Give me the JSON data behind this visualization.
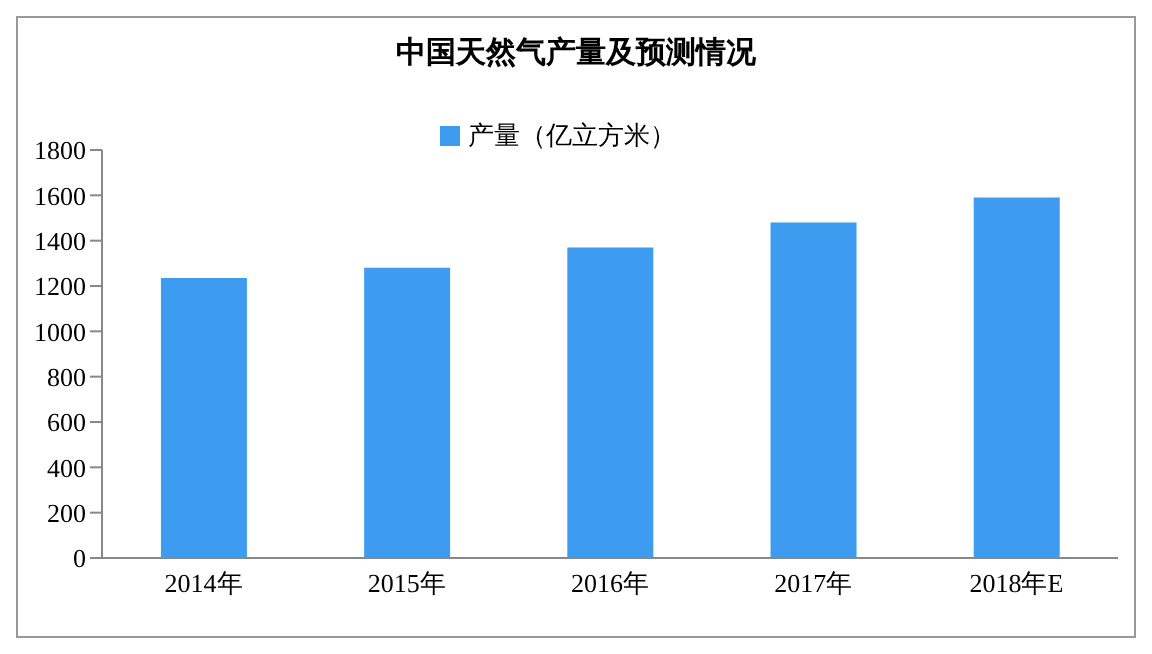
{
  "chart_data": {
    "type": "bar",
    "title": "中国天然气产量及预测情况",
    "categories": [
      "2014年",
      "2015年",
      "2016年",
      "2017年",
      "2018年E"
    ],
    "series": [
      {
        "name": "产量（亿立方米）",
        "color": "#3d9cf0",
        "values": [
          1235,
          1280,
          1370,
          1480,
          1590
        ]
      }
    ],
    "ylim": [
      0,
      1800
    ],
    "yticks": [
      0,
      200,
      400,
      600,
      800,
      1000,
      1200,
      1400,
      1600,
      1800
    ],
    "grid": false,
    "legend": "top"
  }
}
